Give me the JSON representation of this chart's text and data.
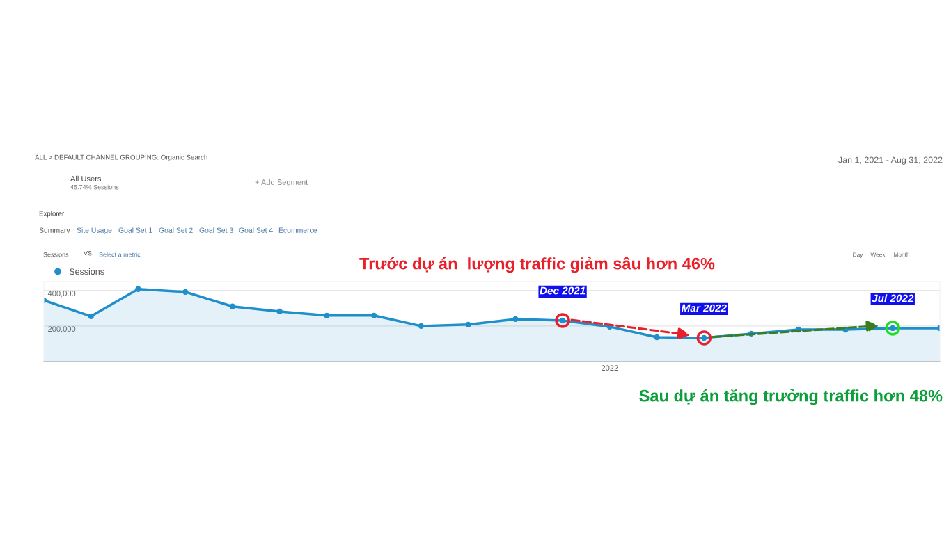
{
  "chart_data": {
    "type": "area",
    "title": "Trước dự án  lượng traffic giảm sâu hơn 46%",
    "subtitle": "Sau dự án tăng trưởng traffic hơn 48%",
    "categories": [
      null,
      null,
      null,
      null,
      null,
      null,
      null,
      null,
      null,
      null,
      null,
      null,
      "2022",
      null,
      null,
      null,
      null,
      null,
      null,
      null
    ],
    "series": [
      {
        "name": "Sessions",
        "color": "#1f8fcc",
        "values": [
          345000,
          255000,
          408000,
          392000,
          310000,
          282000,
          259000,
          259000,
          200000,
          208000,
          239000,
          231000,
          196000,
          137000,
          133000,
          157000,
          180000,
          180000,
          188000,
          188000
        ]
      }
    ],
    "ylim": [
      0,
      450000
    ],
    "yticks": [
      {
        "value": 200000,
        "label": "200,000"
      },
      {
        "value": 400000,
        "label": "400,000"
      }
    ],
    "grid": "y",
    "legend": "top left",
    "marker": "circle",
    "line_style": "solid",
    "annotations": [
      "ALL > DEFAULT CHANNEL GROUPING: Organic Search",
      "All Users",
      "45.74% Sessions",
      "+ Add Segment",
      "Jan 1, 2021 - Aug 31, 2022",
      "Explorer",
      "Summary",
      "Site Usage",
      "Goal Set 1",
      "Goal Set 2",
      "Goal Set 3",
      "Goal Set 4",
      "Ecommerce",
      "Sessions",
      "VS.",
      "Select a metric",
      "Day",
      "Week",
      "Month",
      {
        "text": "Dec 2021",
        "y": 231000
      },
      {
        "text": "Mar 2022",
        "y": 133000
      },
      {
        "text": "Jul 2022",
        "y": 188000
      }
    ]
  }
}
